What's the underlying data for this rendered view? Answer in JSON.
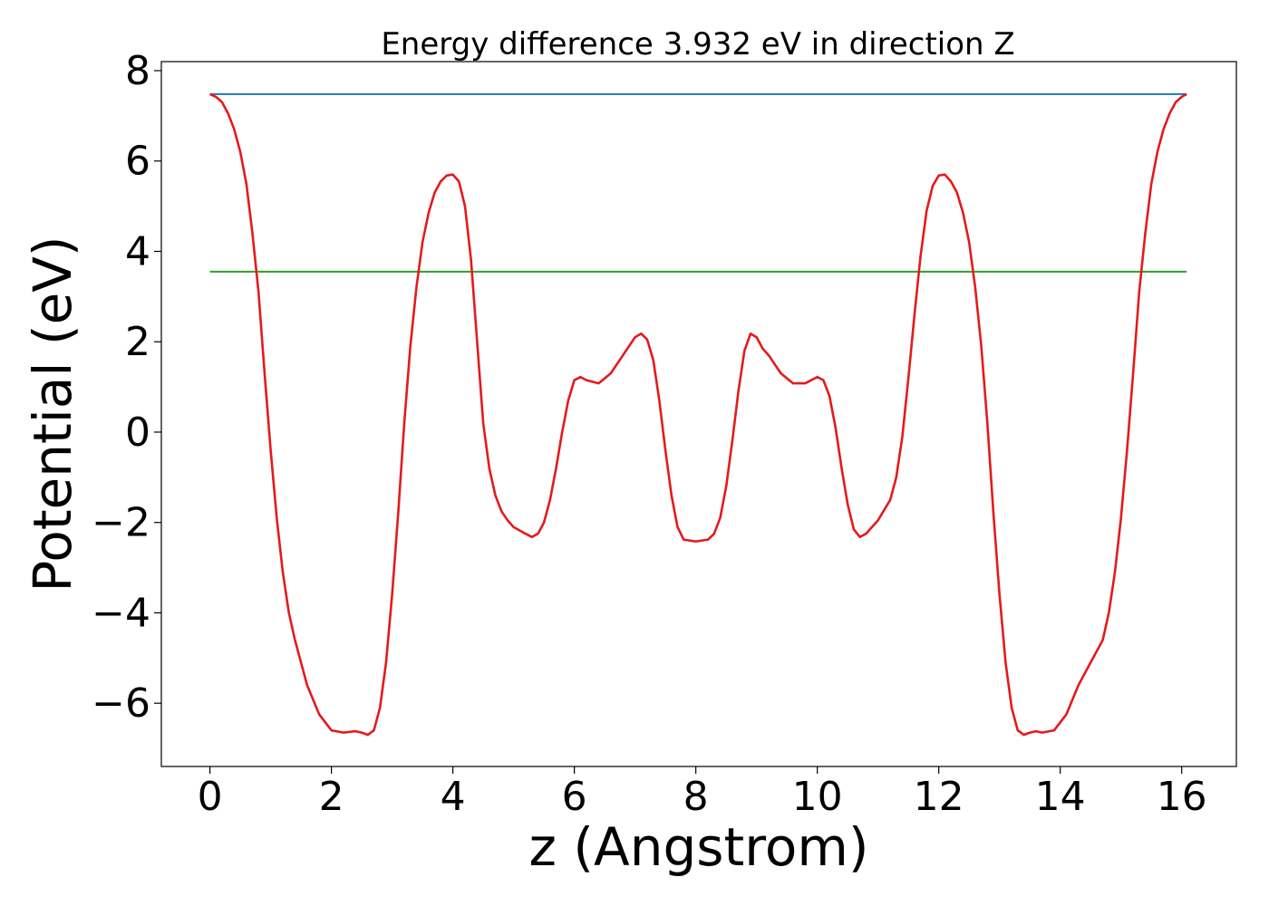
{
  "chart_data": {
    "type": "line",
    "title": "Energy difference 3.932 eV in direction Z",
    "xlabel": "z (Angstrom)",
    "ylabel": "Potential (eV)",
    "xlim": [
      -0.8,
      16.9
    ],
    "ylim": [
      -7.4,
      8.2
    ],
    "xticks": [
      0,
      2,
      4,
      6,
      8,
      10,
      12,
      14,
      16
    ],
    "yticks": [
      -6,
      -4,
      -2,
      0,
      2,
      4,
      6,
      8
    ],
    "xtick_labels": [
      "0",
      "2",
      "4",
      "6",
      "8",
      "10",
      "12",
      "14",
      "16"
    ],
    "ytick_labels": [
      "−6",
      "−4",
      "−2",
      "0",
      "2",
      "4",
      "6",
      "8"
    ],
    "grid": false,
    "series": [
      {
        "color": "#1f77b4",
        "x": [
          0,
          16.08
        ],
        "y": [
          7.48,
          7.48
        ]
      },
      {
        "color": "#2ca02c",
        "x": [
          0,
          16.08
        ],
        "y": [
          3.55,
          3.55
        ]
      },
      {
        "color": "#e41a1c",
        "x": [
          0,
          0.1,
          0.2,
          0.3,
          0.4,
          0.5,
          0.6,
          0.7,
          0.8,
          0.9,
          1.0,
          1.1,
          1.2,
          1.3,
          1.4,
          1.5,
          1.6,
          1.8,
          2.0,
          2.2,
          2.4,
          2.5,
          2.6,
          2.7,
          2.8,
          2.9,
          3.0,
          3.1,
          3.2,
          3.3,
          3.4,
          3.5,
          3.6,
          3.7,
          3.8,
          3.9,
          4.0,
          4.1,
          4.2,
          4.3,
          4.4,
          4.5,
          4.6,
          4.7,
          4.8,
          4.9,
          5.0,
          5.2,
          5.3,
          5.4,
          5.5,
          5.6,
          5.7,
          5.8,
          5.9,
          6.0,
          6.1,
          6.2,
          6.4,
          6.6,
          6.8,
          7.0,
          7.1,
          7.2,
          7.3,
          7.4,
          7.5,
          7.6,
          7.7,
          7.8,
          8.0,
          8.2,
          8.3,
          8.4,
          8.5,
          8.6,
          8.7,
          8.8,
          8.9,
          9.0,
          9.1,
          9.2,
          9.4,
          9.6,
          9.8,
          10.0,
          10.1,
          10.2,
          10.3,
          10.4,
          10.5,
          10.6,
          10.7,
          10.8,
          10.9,
          11.0,
          11.2,
          11.3,
          11.4,
          11.5,
          11.6,
          11.7,
          11.8,
          11.9,
          12.0,
          12.1,
          12.2,
          12.3,
          12.4,
          12.5,
          12.6,
          12.7,
          12.8,
          12.9,
          13.0,
          13.1,
          13.2,
          13.3,
          13.4,
          13.5,
          13.6,
          13.7,
          13.9,
          14.1,
          14.3,
          14.5,
          14.7,
          14.8,
          14.9,
          15.0,
          15.1,
          15.2,
          15.3,
          15.4,
          15.5,
          15.6,
          15.7,
          15.8,
          15.9,
          16.0,
          16.08
        ],
        "y": [
          7.48,
          7.42,
          7.3,
          7.05,
          6.7,
          6.2,
          5.5,
          4.4,
          3.1,
          1.3,
          -0.4,
          -1.9,
          -3.1,
          -4.0,
          -4.6,
          -5.1,
          -5.6,
          -6.25,
          -6.6,
          -6.65,
          -6.62,
          -6.65,
          -6.7,
          -6.6,
          -6.1,
          -5.1,
          -3.6,
          -1.8,
          0.2,
          1.9,
          3.2,
          4.2,
          4.85,
          5.3,
          5.55,
          5.68,
          5.7,
          5.55,
          5.0,
          3.8,
          2.0,
          0.2,
          -0.8,
          -1.4,
          -1.75,
          -1.95,
          -2.1,
          -2.25,
          -2.32,
          -2.25,
          -2.0,
          -1.5,
          -0.8,
          0.0,
          0.7,
          1.15,
          1.22,
          1.15,
          1.08,
          1.3,
          1.7,
          2.1,
          2.18,
          2.05,
          1.6,
          0.7,
          -0.4,
          -1.4,
          -2.1,
          -2.38,
          -2.42,
          -2.38,
          -2.25,
          -1.9,
          -1.2,
          -0.2,
          0.9,
          1.8,
          2.18,
          2.1,
          1.85,
          1.7,
          1.3,
          1.08,
          1.08,
          1.22,
          1.15,
          0.8,
          0.1,
          -0.8,
          -1.6,
          -2.15,
          -2.32,
          -2.25,
          -2.1,
          -1.95,
          -1.5,
          -1.0,
          -0.1,
          1.2,
          2.6,
          3.9,
          4.9,
          5.45,
          5.68,
          5.7,
          5.55,
          5.3,
          4.85,
          4.2,
          3.2,
          1.9,
          0.2,
          -1.8,
          -3.6,
          -5.1,
          -6.1,
          -6.6,
          -6.7,
          -6.65,
          -6.62,
          -6.65,
          -6.6,
          -6.25,
          -5.6,
          -5.1,
          -4.6,
          -4.0,
          -3.1,
          -1.9,
          -0.4,
          1.3,
          3.1,
          4.4,
          5.5,
          6.2,
          6.7,
          7.05,
          7.3,
          7.42,
          7.48
        ]
      }
    ]
  }
}
